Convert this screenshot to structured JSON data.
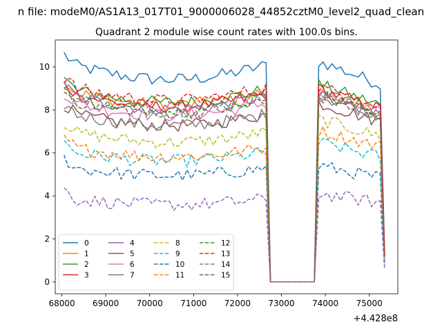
{
  "chart_data": {
    "type": "line",
    "suptitle": "n file: modeM0/AS1A13_017T01_9000006028_44852cztM0_level2_quad_clean",
    "title": "Quadrant 2 module wise count rates with 100.0s bins.",
    "xlabel": "",
    "ylabel": "",
    "x_offset_label": "+4.428e8",
    "xlim": [
      67850,
      75650
    ],
    "ylim": [
      -0.55,
      11.25
    ],
    "xticks": [
      68000,
      69000,
      70000,
      71000,
      72000,
      73000,
      74000,
      75000
    ],
    "yticks": [
      0,
      2,
      4,
      6,
      8,
      10
    ],
    "x": {
      "start": 68050,
      "step": 100,
      "count": 74
    },
    "legend_position": "lower-left",
    "legend_columns": 4,
    "gaps": [
      {
        "from": 72650,
        "to": 73850,
        "level": 0.0
      }
    ],
    "series": [
      {
        "name": "0",
        "color": "#1f77b4",
        "dash": "solid",
        "level1": 9.7,
        "level2": 9.5
      },
      {
        "name": "1",
        "color": "#ff7f0e",
        "dash": "solid",
        "level1": 8.5,
        "level2": 8.2
      },
      {
        "name": "2",
        "color": "#2ca02c",
        "dash": "solid",
        "level1": 8.6,
        "level2": 8.5
      },
      {
        "name": "3",
        "color": "#d62728",
        "dash": "solid",
        "level1": 8.4,
        "level2": 8.3
      },
      {
        "name": "4",
        "color": "#9467bd",
        "dash": "solid",
        "level1": 8.3,
        "level2": 8.0
      },
      {
        "name": "5",
        "color": "#8c564b",
        "dash": "solid",
        "level1": 7.5,
        "level2": 7.7
      },
      {
        "name": "6",
        "color": "#e377c2",
        "dash": "solid",
        "level1": 8.0,
        "level2": 8.1
      },
      {
        "name": "7",
        "color": "#7f7f7f",
        "dash": "solid",
        "level1": 7.5,
        "level2": 8.0
      },
      {
        "name": "8",
        "color": "#bcbd22",
        "dash": "dashed",
        "level1": 6.7,
        "level2": 7.0
      },
      {
        "name": "9",
        "color": "#17becf",
        "dash": "dashed",
        "level1": 5.8,
        "level2": 6.0
      },
      {
        "name": "10",
        "color": "#1f77b4",
        "dash": "dashed",
        "level1": 5.1,
        "level2": 5.0
      },
      {
        "name": "11",
        "color": "#ff7f0e",
        "dash": "dashed",
        "level1": 6.0,
        "level2": 6.5
      },
      {
        "name": "12",
        "color": "#2ca02c",
        "dash": "dashed",
        "level1": 8.2,
        "level2": 8.1
      },
      {
        "name": "13",
        "color": "#d62728",
        "dash": "dashed",
        "level1": 8.7,
        "level2": 8.4
      },
      {
        "name": "14",
        "color": "#9467bd",
        "dash": "dashed",
        "level1": 3.7,
        "level2": 3.8
      },
      {
        "name": "15",
        "color": "#8c564b",
        "dash": "dashed",
        "level1": 8.1,
        "level2": 8.0
      }
    ]
  }
}
